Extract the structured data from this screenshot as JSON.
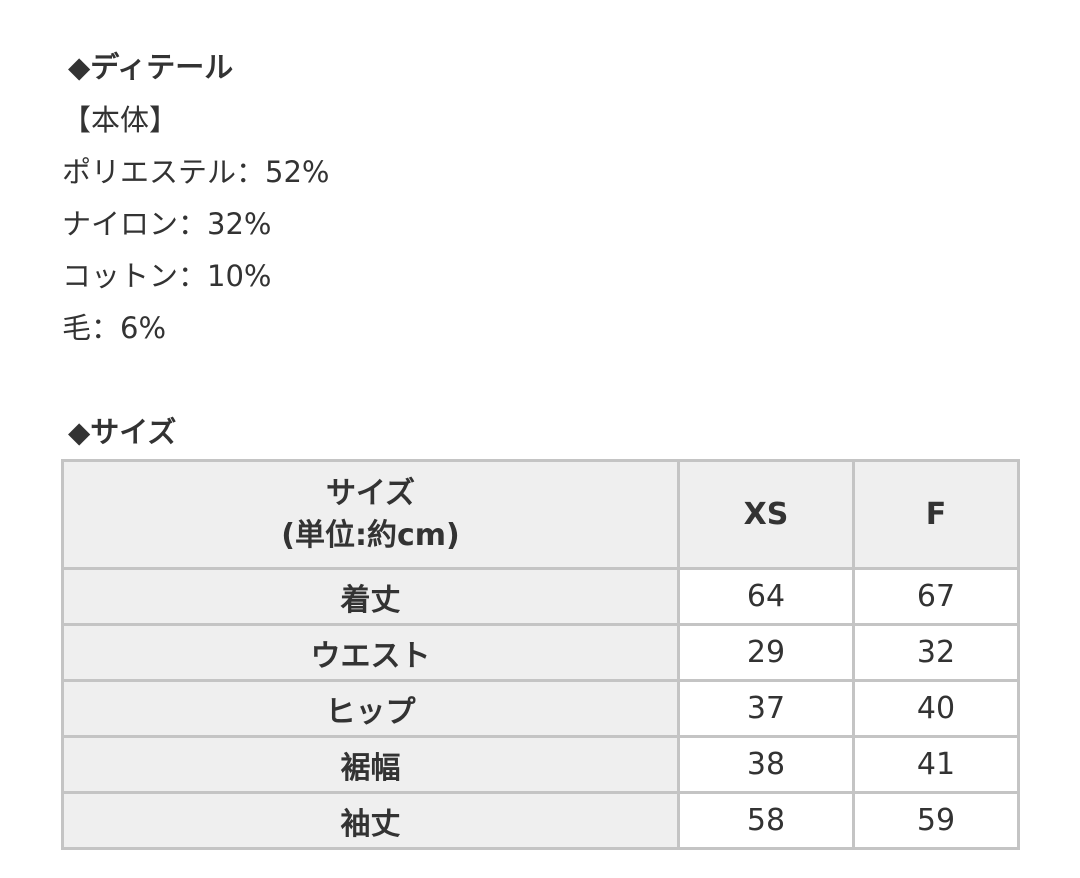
{
  "detail": {
    "heading": "◆ディテール",
    "section": "【本体】",
    "materials": [
      "ポリエステル：52%",
      "ナイロン：32%",
      "コットン：10%",
      "毛：6%"
    ]
  },
  "size": {
    "heading": "◆サイズ",
    "table": {
      "header_label_1": "サイズ",
      "header_label_2": "(単位:約cm)",
      "columns": [
        "XS",
        "F"
      ],
      "rows": [
        {
          "label": "着丈",
          "values": [
            "64",
            "67"
          ]
        },
        {
          "label": "ウエスト",
          "values": [
            "29",
            "32"
          ]
        },
        {
          "label": "ヒップ",
          "values": [
            "37",
            "40"
          ]
        },
        {
          "label": "裾幅",
          "values": [
            "38",
            "41"
          ]
        },
        {
          "label": "袖丈",
          "values": [
            "58",
            "59"
          ]
        }
      ]
    }
  }
}
